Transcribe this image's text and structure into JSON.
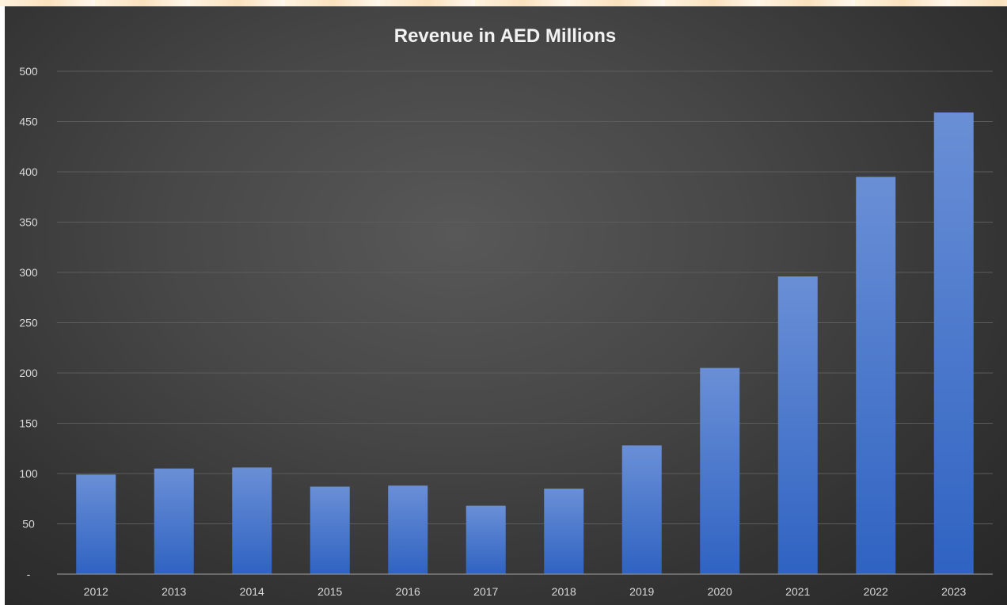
{
  "chart_data": {
    "type": "bar",
    "title": "Revenue in AED Millions",
    "categories": [
      "2012",
      "2013",
      "2014",
      "2015",
      "2016",
      "2017",
      "2018",
      "2019",
      "2020",
      "2021",
      "2022",
      "2023"
    ],
    "values": [
      99,
      105,
      106,
      87,
      88,
      68,
      85,
      128,
      205,
      296,
      395,
      459
    ],
    "ylim": [
      0,
      500
    ],
    "yticks": [
      0,
      50,
      100,
      150,
      200,
      250,
      300,
      350,
      400,
      450,
      500
    ],
    "ytick_labels": [
      "-",
      "50",
      "100",
      "150",
      "200",
      "250",
      "300",
      "350",
      "400",
      "450",
      "500"
    ],
    "grid": true,
    "legend": "none",
    "colors": {
      "bar_top": "#6a8fd6",
      "bar_bottom": "#2f63c2",
      "background": "#444444",
      "text": "#d9d9d9",
      "title": "#f2f2f2",
      "gridline": "#5c5c5c",
      "axis": "#8c8c8c"
    }
  }
}
